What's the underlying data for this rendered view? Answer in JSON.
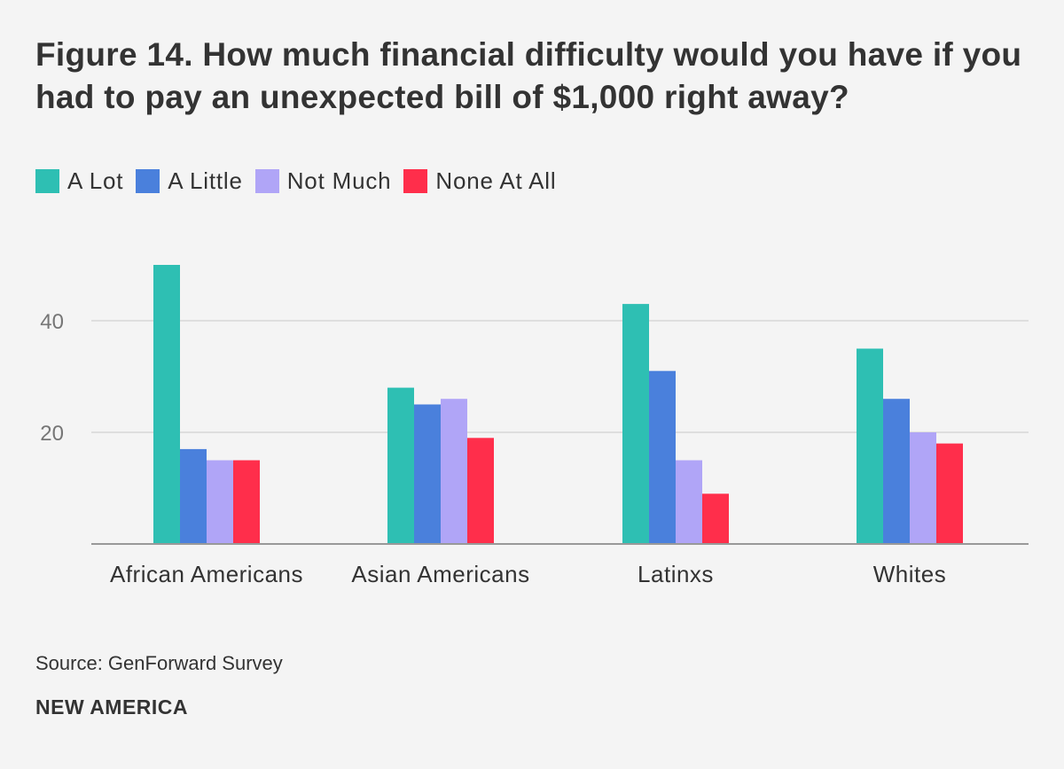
{
  "header": {
    "title": "Figure 14. How much financial difficulty would you have if you had to pay an unexpected bill of $1,000 right away?"
  },
  "legend": {
    "items": [
      {
        "label": "A Lot",
        "color": "#2ebfb3"
      },
      {
        "label": "A Little",
        "color": "#4a80dc"
      },
      {
        "label": "Not Much",
        "color": "#b0a5f7"
      },
      {
        "label": "None At All",
        "color": "#ff2e4b"
      }
    ]
  },
  "chart_data": {
    "type": "bar",
    "title": "Figure 14. How much financial difficulty would you have if you had to pay an unexpected bill of $1,000 right away?",
    "categories": [
      "African Americans",
      "Asian Americans",
      "Latinxs",
      "Whites"
    ],
    "series": [
      {
        "name": "A Lot",
        "color": "#2ebfb3",
        "values": [
          50,
          28,
          43,
          35
        ]
      },
      {
        "name": "A Little",
        "color": "#4a80dc",
        "values": [
          17,
          25,
          31,
          26
        ]
      },
      {
        "name": "Not Much",
        "color": "#b0a5f7",
        "values": [
          15,
          26,
          15,
          20
        ]
      },
      {
        "name": "None At All",
        "color": "#ff2e4b",
        "values": [
          15,
          19,
          9,
          18
        ]
      }
    ],
    "yticks": [
      20,
      40
    ],
    "ylim": [
      0,
      55
    ],
    "xlabel": "",
    "ylabel": "",
    "grid": true,
    "legend_position": "top-left"
  },
  "footer": {
    "source": "Source: GenForward Survey",
    "brand": "NEW AMERICA"
  }
}
